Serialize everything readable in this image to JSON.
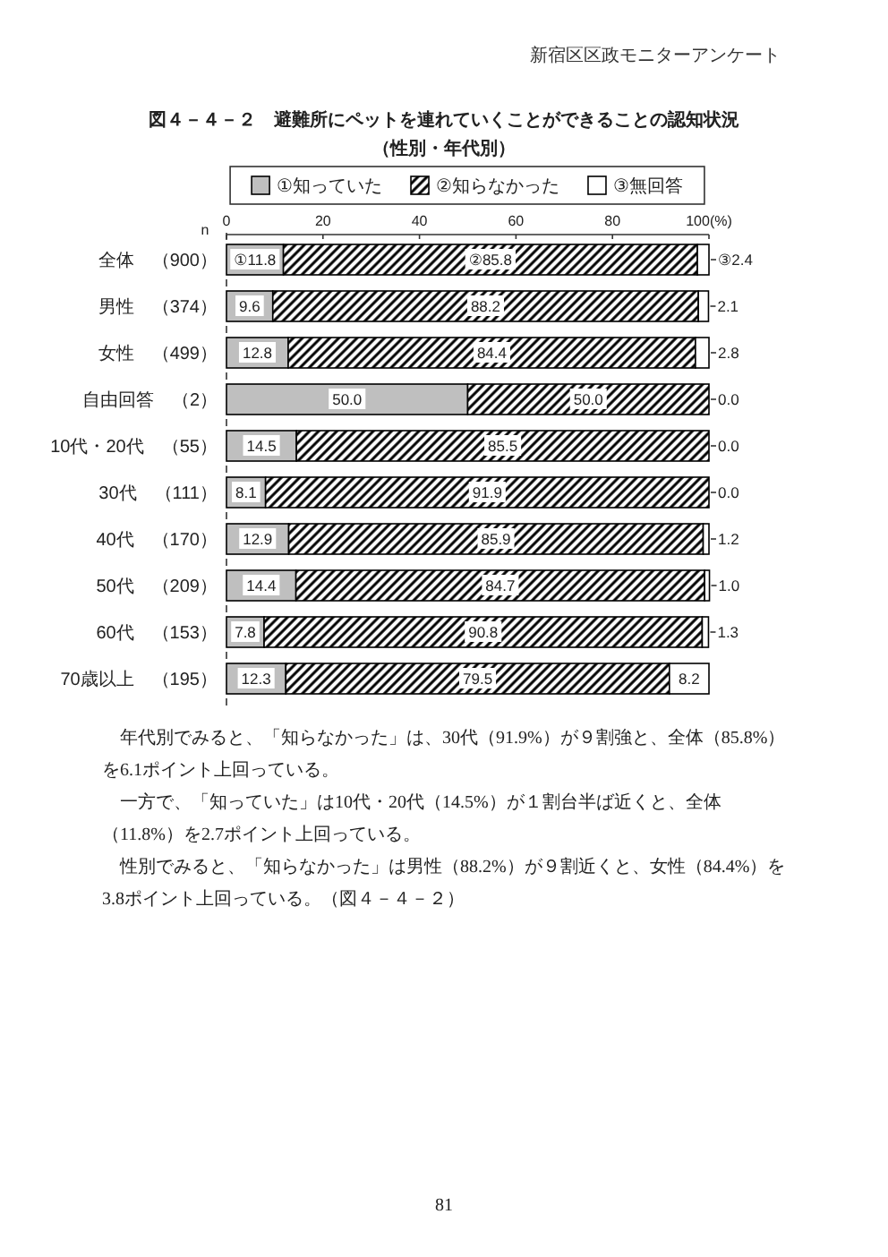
{
  "chart_data": {
    "type": "bar",
    "orientation": "horizontal",
    "stacked": true,
    "title": "図４－４－２　避難所にペットを連れていくことができることの認知状況",
    "subtitle": "（性別・年代別）",
    "ylabel": "n",
    "categories": [
      "全体　（900）",
      "男性　（374）",
      "女性　（499）",
      "自由回答　（2）",
      "10代・20代　（55）",
      "30代　（111）",
      "40代　（170）",
      "50代　（209）",
      "60代　（153）",
      "70歳以上　（195）"
    ],
    "series": [
      {
        "name": "①知っていた",
        "color": "#bfbfbf",
        "values": [
          11.8,
          9.6,
          12.8,
          50.0,
          14.5,
          8.1,
          12.9,
          14.4,
          7.8,
          12.3
        ],
        "value_labels": [
          "①11.8",
          "9.6",
          "12.8",
          "50.0",
          "14.5",
          "8.1",
          "12.9",
          "14.4",
          "7.8",
          "12.3"
        ]
      },
      {
        "name": "②知らなかった",
        "color": "#000000",
        "values": [
          85.8,
          88.2,
          84.4,
          50.0,
          85.5,
          91.9,
          85.9,
          84.7,
          90.8,
          79.5
        ],
        "value_labels": [
          "②85.8",
          "88.2",
          "84.4",
          "50.0",
          "85.5",
          "91.9",
          "85.9",
          "84.7",
          "90.8",
          "79.5"
        ]
      },
      {
        "name": "③無回答",
        "color": "#ffffff",
        "values": [
          2.4,
          2.1,
          2.8,
          0.0,
          0.0,
          0.0,
          1.2,
          1.0,
          1.3,
          8.2
        ],
        "value_labels": [
          "③2.4",
          "2.1",
          "2.8",
          "0.0",
          "0.0",
          "0.0",
          "1.2",
          "1.0",
          "1.3",
          "8.2"
        ]
      }
    ],
    "xlim": [
      0,
      100
    ],
    "xticks": [
      0,
      20,
      40,
      60,
      80,
      {
        "value": 100,
        "label": "100(%)"
      }
    ],
    "legend": "top",
    "annotations": [
      "新宿区区政モニターアンケート",
      "年代別でみると、「知らなかった」は、30代（91.9%）が９割強と、全体（85.8%）を6.1ポイント上回っている。",
      "一方で、「知っていた」は10代・20代（14.5%）が１割台半ば近くと、全体（11.8%）を2.7ポイント上回っている。",
      "性別でみると、「知らなかった」は男性（88.2%）が９割近くと、女性（84.4%）を3.8ポイント上回っている。（図４－４－２）",
      "81"
    ]
  }
}
